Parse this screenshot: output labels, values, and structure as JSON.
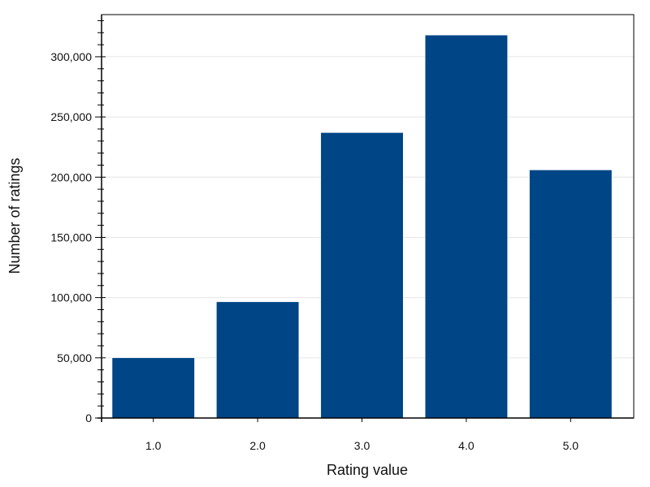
{
  "chart_data": {
    "type": "bar",
    "xlabel": "Rating value",
    "ylabel": "Number of ratings",
    "categories": [
      "1.0",
      "2.0",
      "3.0",
      "4.0",
      "5.0"
    ],
    "values": [
      50000,
      96500,
      237000,
      318000,
      206000
    ],
    "ylim": [
      0,
      335000
    ],
    "y_ticks": [
      0,
      50000,
      100000,
      150000,
      200000,
      250000,
      300000
    ],
    "y_tick_labels": [
      "0",
      "50,000",
      "100,000",
      "150,000",
      "200,000",
      "250,000",
      "300,000"
    ],
    "y_minor_tick_step": 10000,
    "grid": "horizontal",
    "legend": "none",
    "colors": {
      "bar": "#004586",
      "axis": "#000000",
      "grid": "#e6e6e6"
    }
  }
}
